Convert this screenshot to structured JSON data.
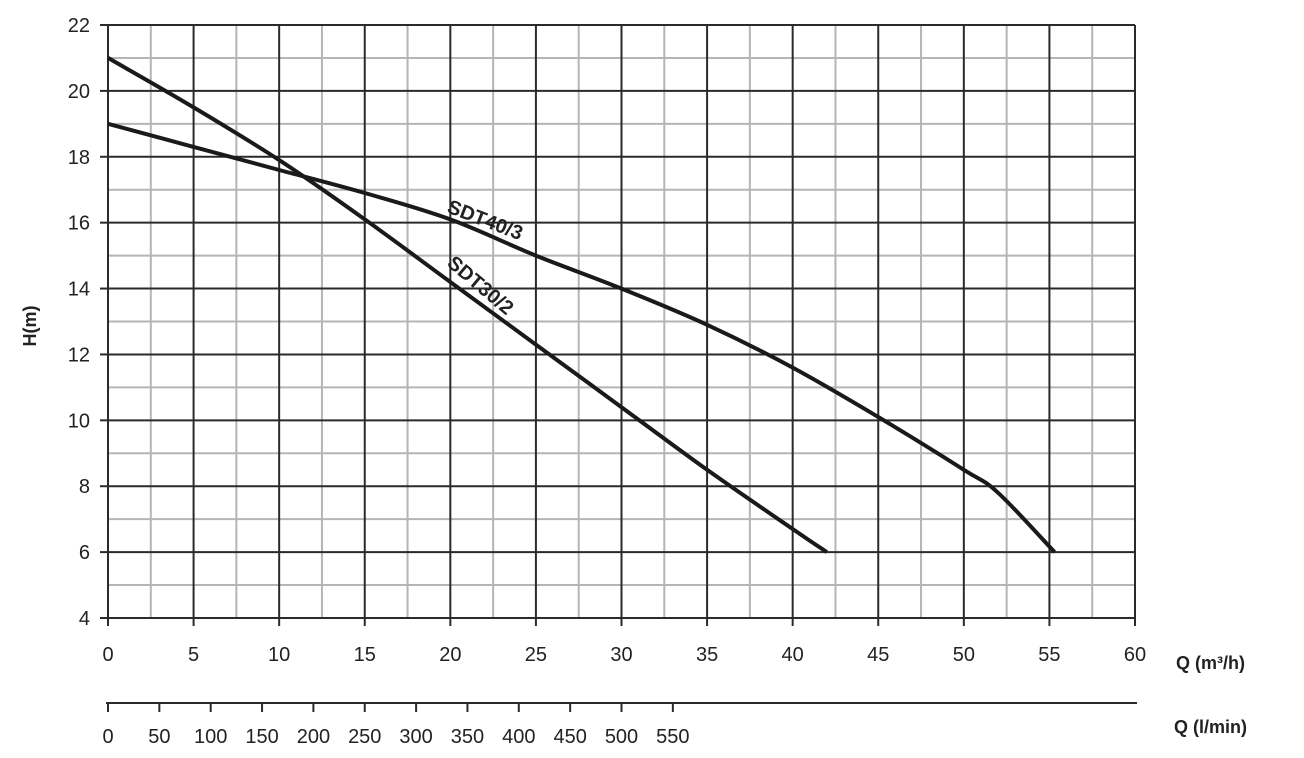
{
  "chart_data": {
    "type": "line",
    "title": "",
    "xlabel": "Q (m³/h)",
    "x2label": "Q (l/min)",
    "ylabel": "H(m)",
    "xlim": [
      0,
      60
    ],
    "ylim": [
      4,
      22
    ],
    "x_ticks": [
      "0",
      "5",
      "10",
      "15",
      "20",
      "25",
      "30",
      "35",
      "40",
      "45",
      "50",
      "55",
      "60"
    ],
    "x2_ticks": [
      "0",
      "50",
      "100",
      "150",
      "200",
      "250",
      "300",
      "350",
      "400",
      "450",
      "500",
      "550"
    ],
    "y_ticks": [
      "22",
      "20",
      "18",
      "16",
      "14",
      "12",
      "10",
      "8",
      "6",
      "4"
    ],
    "grid": true,
    "legend": "none",
    "series": [
      {
        "name": "SDT40/3",
        "color": "#1a1a1a",
        "x": [
          0,
          5,
          10,
          15,
          20,
          25,
          30,
          35,
          40,
          45,
          50,
          52,
          55.3
        ],
        "y": [
          19,
          18.3,
          17.6,
          16.9,
          16.1,
          15.0,
          14.0,
          12.9,
          11.6,
          10.1,
          8.5,
          7.8,
          6
        ]
      },
      {
        "name": "SDT30/2",
        "color": "#1a1a1a",
        "x": [
          0,
          5,
          10,
          15,
          20,
          25,
          30,
          35,
          40,
          42
        ],
        "y": [
          21,
          19.5,
          17.9,
          16.1,
          14.2,
          12.3,
          10.4,
          8.5,
          6.7,
          6
        ]
      }
    ]
  }
}
